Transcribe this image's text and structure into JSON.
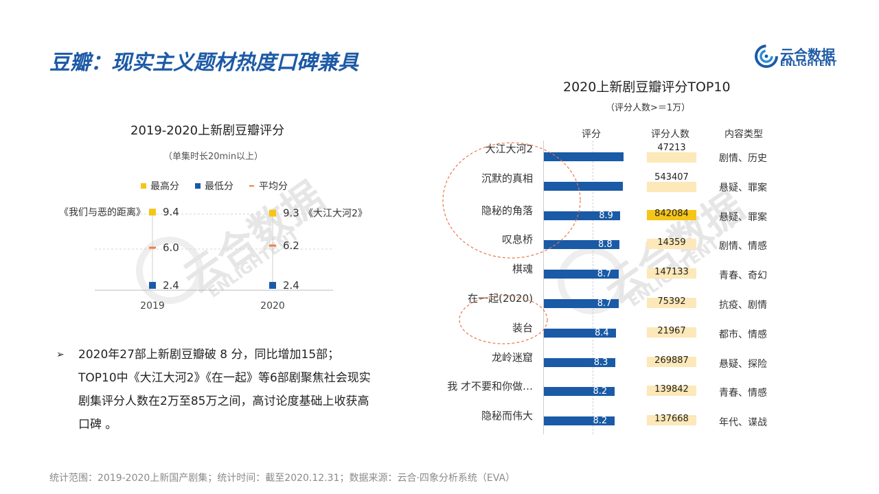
{
  "page": {
    "title": "豆瓣：现实主义题材热度口碑兼具",
    "footer": "统计范围：2019-2020上新国产剧集；统计时间：截至2020.12.31；数据来源：云合·四象分析系统（EVA）",
    "logo_cn": "云合数据",
    "logo_en": "ENLIGHTENT",
    "bullet": "2020年27部上新剧豆瓣破 8 分，同比增加15部；TOP10中《大江大河2》《在一起》等6部剧聚焦社会现实剧集评分人数在2万至85万之间，高讨论度基础上收获高口碑 。",
    "colors": {
      "title": "#1d5aa6",
      "bar": "#1a5aa6",
      "high": "#f5c518",
      "avg": "#f08040",
      "count_bg": "#fce8b8",
      "count_hi": "#f5c518"
    }
  },
  "chart_data": [
    {
      "type": "scatter",
      "title": "2019-2020上新剧豆瓣评分",
      "subtitle": "（单集时长20min以上）",
      "categories": [
        "2019",
        "2020"
      ],
      "legend": [
        "最高分",
        "最低分",
        "平均分"
      ],
      "series": [
        {
          "name": "最高分",
          "values": [
            9.4,
            9.3
          ],
          "labels": [
            "《我们与恶的距离》",
            "《大江大河2》"
          ]
        },
        {
          "name": "最低分",
          "values": [
            2.4,
            2.4
          ]
        },
        {
          "name": "平均分",
          "values": [
            6.0,
            6.2
          ]
        }
      ],
      "ylim": [
        2.0,
        10.0
      ],
      "legend_position": "top"
    },
    {
      "type": "bar",
      "title": "2020上新剧豆瓣评分TOP10",
      "subtitle": "（评分人数>＝1万）",
      "columns": [
        "评分",
        "评分人数",
        "内容类型"
      ],
      "categories": [
        "大江大河2",
        "沉默的真相",
        "隐秘的角落",
        "叹息桥",
        "棋魂",
        "在一起(2020)",
        "装台",
        "龙岭迷窟",
        "我 才不要和你做…",
        "隐秘而伟大"
      ],
      "values": [
        9.3,
        9.2,
        8.9,
        8.8,
        8.7,
        8.7,
        8.4,
        8.3,
        8.2,
        8.2
      ],
      "value_labels": [
        "",
        "",
        "8.9",
        "8.8",
        "8.7",
        "8.7",
        "8.4",
        "8.3",
        "8.2",
        "8.2"
      ],
      "counts": [
        47213,
        543407,
        842084,
        14359,
        147133,
        75392,
        21967,
        269887,
        139842,
        137668
      ],
      "types": [
        "剧情、历史",
        "悬疑、罪案",
        "悬疑、罪案",
        "剧情、情感",
        "青春、奇幻",
        "抗疫、剧情",
        "都市、情感",
        "悬疑、探险",
        "青春、情感",
        "年代、谍战"
      ],
      "xlim": [
        0,
        9.6
      ]
    }
  ]
}
